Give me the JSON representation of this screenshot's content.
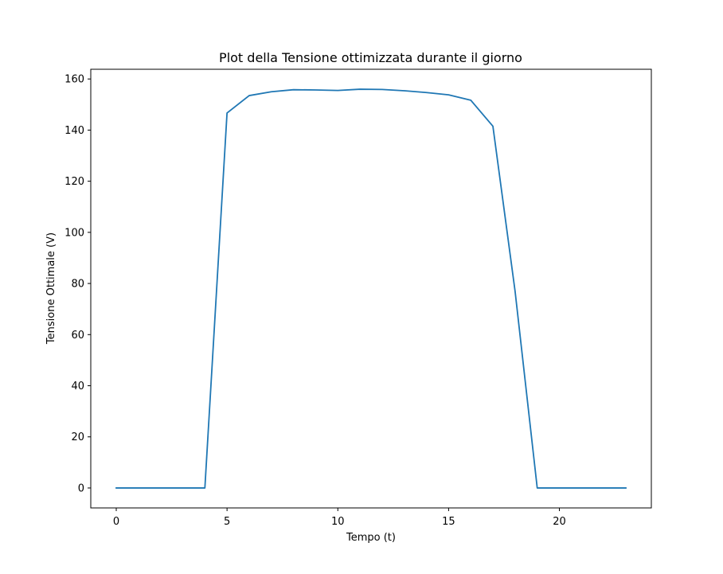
{
  "chart_data": {
    "type": "line",
    "title": "Plot della Tensione ottimizzata durante il giorno",
    "xlabel": "Tempo (t)",
    "ylabel": "Tensione Ottimale (V)",
    "xlim": [
      -1.15,
      24.15
    ],
    "ylim": [
      -7.8,
      163.8
    ],
    "xticks": [
      0,
      5,
      10,
      15,
      20
    ],
    "yticks": [
      0,
      20,
      40,
      60,
      80,
      100,
      120,
      140,
      160
    ],
    "grid": false,
    "series": [
      {
        "color": "#1f77b4",
        "x": [
          0,
          1,
          2,
          3,
          4,
          5,
          6,
          7,
          8,
          9,
          10,
          11,
          12,
          13,
          14,
          15,
          16,
          17,
          18,
          19,
          20,
          21,
          22,
          23
        ],
        "y": [
          0,
          0,
          0,
          0,
          0,
          146.7,
          153.5,
          155.0,
          155.8,
          155.7,
          155.5,
          156.0,
          155.9,
          155.4,
          154.7,
          153.8,
          151.7,
          141.5,
          77.0,
          0,
          0,
          0,
          0,
          0
        ]
      }
    ]
  }
}
